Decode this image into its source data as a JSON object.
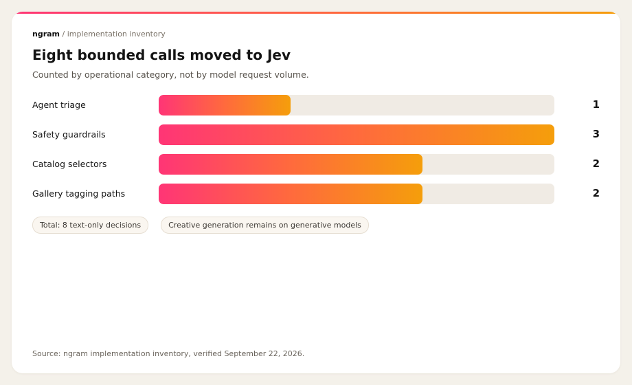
{
  "breadcrumb": {
    "brand": "ngram",
    "separator": "/",
    "section": "implementation inventory"
  },
  "chart_data": {
    "type": "bar",
    "orientation": "horizontal",
    "title": "Eight bounded calls moved to Jev",
    "subtitle": "Counted by operational category, not by model request volume.",
    "categories": [
      "Agent triage",
      "Safety guardrails",
      "Catalog selectors",
      "Gallery tagging paths"
    ],
    "values": [
      1,
      3,
      2,
      2
    ],
    "xlim": [
      0,
      3
    ],
    "grid": false,
    "legend": "none",
    "colors": {
      "gradient_start": "#ff3576",
      "gradient_mid": "#ff6a3d",
      "gradient_end": "#f59e0b",
      "track": "#f0ebe4"
    }
  },
  "pills": [
    "Total: 8 text-only decisions",
    "Creative generation remains on generative models"
  ],
  "source": "Source: ngram implementation inventory, verified September 22, 2026."
}
